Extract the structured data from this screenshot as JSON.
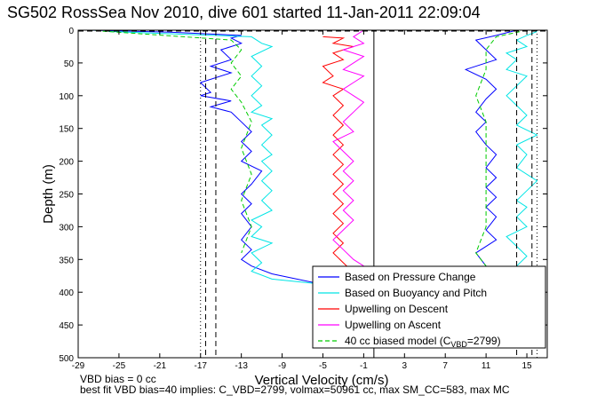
{
  "chart_data": {
    "type": "line",
    "title": "SG502 RossSea Nov 2010, dive 601 started 11-Jan-2011 22:09:04",
    "xlabel": "Vertical Velocity (cm/s)",
    "ylabel": "Depth (m)",
    "xlim": [
      -29,
      17
    ],
    "ylim": [
      500,
      0
    ],
    "xticks": [
      -29,
      -25,
      -21,
      -17,
      -13,
      -9,
      -5,
      -1,
      3,
      7,
      11,
      15
    ],
    "yticks": [
      0,
      50,
      100,
      150,
      200,
      250,
      300,
      350,
      400,
      450,
      500
    ],
    "grid": false,
    "legend_position": "bottom-right",
    "reference_lines": {
      "solid_x": [
        0
      ],
      "dashed_x": [
        -16.5,
        -15.5,
        14,
        15.5
      ],
      "dotted_x": [
        -17,
        16
      ],
      "dashed_y": [
        0
      ]
    },
    "series": [
      {
        "name": "Based on Pressure Change",
        "color": "#0000ff",
        "style": "solid",
        "descent": [
          [
            -28,
            0
          ],
          [
            -20,
            3
          ],
          [
            -13,
            8
          ],
          [
            -14,
            12
          ],
          [
            -13,
            20
          ],
          [
            -15,
            30
          ],
          [
            -14,
            45
          ],
          [
            -16,
            55
          ],
          [
            -14,
            65
          ],
          [
            -17,
            80
          ],
          [
            -16,
            95
          ],
          [
            -17,
            100
          ],
          [
            -14,
            108
          ],
          [
            -16,
            117
          ],
          [
            -14,
            125
          ],
          [
            -13,
            140
          ],
          [
            -12,
            155
          ],
          [
            -13,
            170
          ],
          [
            -12,
            185
          ],
          [
            -13,
            200
          ],
          [
            -11,
            215
          ],
          [
            -12,
            235
          ],
          [
            -13,
            250
          ],
          [
            -12,
            265
          ],
          [
            -13,
            280
          ],
          [
            -12,
            300
          ],
          [
            -13,
            320
          ],
          [
            -12,
            335
          ],
          [
            -13,
            350
          ],
          [
            -12,
            360
          ],
          [
            -10,
            372
          ],
          [
            -6,
            385
          ],
          [
            -2,
            388
          ]
        ],
        "ascent": [
          [
            14,
            0
          ],
          [
            12,
            8
          ],
          [
            10,
            15
          ],
          [
            11,
            30
          ],
          [
            12,
            45
          ],
          [
            9,
            60
          ],
          [
            11,
            75
          ],
          [
            12,
            90
          ],
          [
            11,
            105
          ],
          [
            10,
            125
          ],
          [
            11,
            140
          ],
          [
            10,
            155
          ],
          [
            11,
            175
          ],
          [
            12,
            190
          ],
          [
            11,
            210
          ],
          [
            12,
            225
          ],
          [
            11,
            240
          ],
          [
            12,
            255
          ],
          [
            11,
            270
          ],
          [
            12,
            285
          ],
          [
            11,
            305
          ],
          [
            12,
            320
          ],
          [
            10,
            340
          ],
          [
            11,
            360
          ]
        ]
      },
      {
        "name": "Based on Buoyancy and Pitch",
        "color": "#00e5e5",
        "style": "solid",
        "descent": [
          [
            -26,
            2
          ],
          [
            -12,
            10
          ],
          [
            -11,
            20
          ],
          [
            -10,
            25
          ],
          [
            -12,
            40
          ],
          [
            -11,
            55
          ],
          [
            -12,
            70
          ],
          [
            -11,
            85
          ],
          [
            -12,
            100
          ],
          [
            -11,
            115
          ],
          [
            -12,
            125
          ],
          [
            -10,
            135
          ],
          [
            -11,
            145
          ],
          [
            -10,
            160
          ],
          [
            -11,
            175
          ],
          [
            -10,
            190
          ],
          [
            -11,
            200
          ],
          [
            -10,
            215
          ],
          [
            -11,
            230
          ],
          [
            -10,
            245
          ],
          [
            -11,
            260
          ],
          [
            -10,
            275
          ],
          [
            -12,
            290
          ],
          [
            -11,
            300
          ],
          [
            -12,
            315
          ],
          [
            -10,
            325
          ],
          [
            -12,
            340
          ],
          [
            -11,
            355
          ],
          [
            -12,
            368
          ],
          [
            -10,
            380
          ],
          [
            -5,
            388
          ],
          [
            -1,
            389
          ]
        ],
        "ascent": [
          [
            16,
            2
          ],
          [
            15,
            8
          ],
          [
            14,
            15
          ],
          [
            15,
            25
          ],
          [
            13,
            35
          ],
          [
            14,
            45
          ],
          [
            13,
            60
          ],
          [
            15,
            70
          ],
          [
            14,
            85
          ],
          [
            13,
            100
          ],
          [
            14,
            115
          ],
          [
            15,
            130
          ],
          [
            14,
            145
          ],
          [
            16,
            160
          ],
          [
            14,
            175
          ],
          [
            15,
            190
          ],
          [
            14,
            210
          ],
          [
            16,
            230
          ],
          [
            15,
            245
          ],
          [
            14,
            260
          ],
          [
            15,
            270
          ],
          [
            14,
            285
          ],
          [
            15,
            300
          ],
          [
            13,
            315
          ],
          [
            14,
            330
          ],
          [
            15,
            345
          ],
          [
            14,
            360
          ]
        ]
      },
      {
        "name": "Upwelling on Descent",
        "color": "#ff0000",
        "style": "solid",
        "points": [
          [
            -5,
            10
          ],
          [
            -3,
            12
          ],
          [
            -4,
            20
          ],
          [
            -2,
            25
          ],
          [
            -4,
            35
          ],
          [
            -3,
            45
          ],
          [
            -5,
            55
          ],
          [
            -4,
            70
          ],
          [
            -5,
            80
          ],
          [
            -3,
            90
          ],
          [
            -4,
            100
          ],
          [
            -3,
            115
          ],
          [
            -4,
            130
          ],
          [
            -3,
            145
          ],
          [
            -4,
            160
          ],
          [
            -3,
            175
          ],
          [
            -4,
            190
          ],
          [
            -3,
            205
          ],
          [
            -4,
            220
          ],
          [
            -3,
            235
          ],
          [
            -4,
            250
          ],
          [
            -3,
            265
          ],
          [
            -4,
            280
          ],
          [
            -3,
            295
          ],
          [
            -4,
            310
          ],
          [
            -3,
            325
          ],
          [
            -4,
            340
          ],
          [
            -3,
            355
          ],
          [
            -2,
            370
          ],
          [
            -3,
            385
          ]
        ]
      },
      {
        "name": "Upwelling on Ascent",
        "color": "#ff00ff",
        "style": "solid",
        "points": [
          [
            -1,
            0
          ],
          [
            -2,
            10
          ],
          [
            -1,
            20
          ],
          [
            -3,
            30
          ],
          [
            -1,
            40
          ],
          [
            -2,
            50
          ],
          [
            -3,
            60
          ],
          [
            -1,
            70
          ],
          [
            -2,
            80
          ],
          [
            -3,
            90
          ],
          [
            -2,
            100
          ],
          [
            -1,
            110
          ],
          [
            -2,
            125
          ],
          [
            -3,
            140
          ],
          [
            -2,
            155
          ],
          [
            -4,
            170
          ],
          [
            -3,
            185
          ],
          [
            -2,
            200
          ],
          [
            -3,
            215
          ],
          [
            -2,
            230
          ],
          [
            -3,
            245
          ],
          [
            -2,
            260
          ],
          [
            -3,
            275
          ],
          [
            -2,
            290
          ],
          [
            -3,
            305
          ],
          [
            -4,
            320
          ],
          [
            -3,
            335
          ],
          [
            -2,
            350
          ],
          [
            -1,
            360
          ]
        ]
      },
      {
        "name": "40 cc biased model (C_VBD=2799)",
        "color": "#00cc00",
        "style": "dashed",
        "descent": [
          [
            -28,
            0
          ],
          [
            -14,
            15
          ],
          [
            -13,
            30
          ],
          [
            -14,
            50
          ],
          [
            -13,
            70
          ],
          [
            -14,
            90
          ],
          [
            -13,
            110
          ],
          [
            -12,
            140
          ],
          [
            -13,
            180
          ],
          [
            -12,
            220
          ],
          [
            -13,
            260
          ],
          [
            -12,
            300
          ],
          [
            -13,
            340
          ]
        ],
        "ascent": [
          [
            15,
            0
          ],
          [
            12,
            10
          ],
          [
            11,
            30
          ],
          [
            11,
            60
          ],
          [
            10,
            100
          ],
          [
            11,
            140
          ],
          [
            11,
            180
          ],
          [
            11,
            220
          ],
          [
            11,
            260
          ],
          [
            11,
            300
          ],
          [
            10,
            340
          ],
          [
            11,
            360
          ]
        ]
      }
    ],
    "legend_entries": [
      {
        "text": "Based on Pressure Change"
      },
      {
        "text": "Based on Buoyancy and Pitch"
      },
      {
        "text": "Upwelling on Descent"
      },
      {
        "text": "Upwelling on Ascent"
      },
      {
        "text": "40 cc biased model (C",
        "sub": "VBD",
        "suffix": "=2799)"
      }
    ]
  },
  "notes": {
    "line1": "VBD bias = 0 cc",
    "line2": "best fit VBD bias=40 implies: C_VBD=2799, volmax=50961 cc, max SM_CC=583, max MC"
  }
}
